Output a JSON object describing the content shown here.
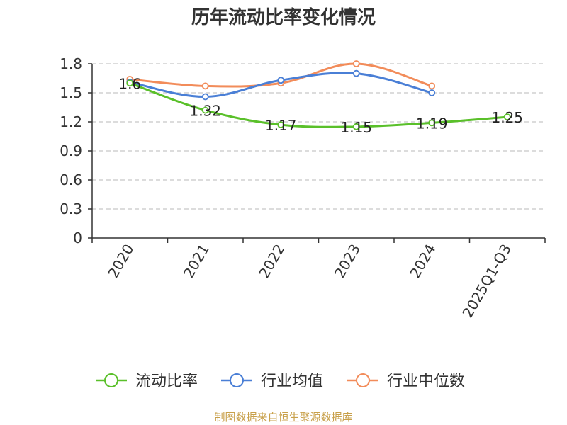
{
  "title": "历年流动比率变化情况",
  "source": "制图数据来自恒生聚源数据库",
  "colors": {
    "current_ratio": "#5ac02a",
    "industry_mean": "#4a7fd6",
    "industry_median": "#f28c5a",
    "axis": "#333333",
    "grid": "#c8c8c8",
    "source_text": "#c8a04a"
  },
  "chart_data": {
    "type": "line",
    "title": "历年流动比率变化情况",
    "categories": [
      "2020",
      "2021",
      "2022",
      "2023",
      "2024",
      "2025Q1-Q3"
    ],
    "ylim": [
      0,
      1.8
    ],
    "yticks": [
      "0",
      "0.3",
      "0.6",
      "0.9",
      "1.2",
      "1.5",
      "1.8"
    ],
    "grid": true,
    "legend_position": "bottom",
    "series": [
      {
        "name": "流动比率",
        "color": "#5ac02a",
        "values": [
          1.6,
          1.32,
          1.17,
          1.15,
          1.19,
          1.25
        ],
        "labels": [
          "1.6",
          "1.32",
          "1.17",
          "1.15",
          "1.19",
          "1.25"
        ],
        "show_labels": true
      },
      {
        "name": "行业均值",
        "color": "#4a7fd6",
        "values": [
          1.61,
          1.46,
          1.63,
          1.7,
          1.5,
          null
        ],
        "show_labels": false
      },
      {
        "name": "行业中位数",
        "color": "#f28c5a",
        "values": [
          1.64,
          1.57,
          1.6,
          1.8,
          1.57,
          null
        ],
        "show_labels": false
      }
    ]
  }
}
